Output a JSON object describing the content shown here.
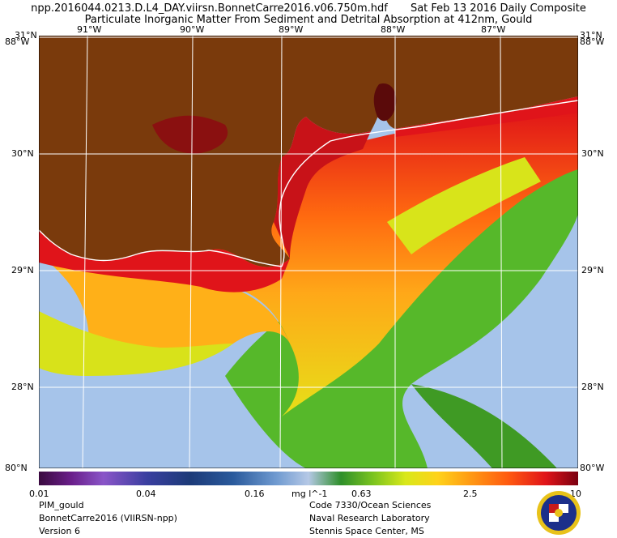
{
  "header": {
    "filename": "npp.2016044.0213.D.L4_DAY.viirsn.BonnetCarre2016.v06.750m.hdf",
    "date": "Sat Feb 13 2016 Daily Composite",
    "product": "Particulate Inorganic Matter From Sediment and Detrital Absorption at 412nm, Gould"
  },
  "axes": {
    "lon_labels": [
      "91°W",
      "90°W",
      "89°W",
      "88°W",
      "87°W"
    ],
    "lat_labels": [
      "30°N",
      "29°N",
      "28°N"
    ],
    "corner_top_lat": "31°N",
    "corner_bottom_lat": "80°N",
    "corner_left_lon": "88°W",
    "corner_right_lon": "88°W",
    "bottom_right_lat": "80°W"
  },
  "colorbar": {
    "ticks": [
      "0.01",
      "0.04",
      "0.16",
      "0.63",
      "2.5",
      "10"
    ],
    "units": "mg l^-1"
  },
  "footer": {
    "left": [
      "PIM_gould",
      "BonnetCarre2016 (VIIRSN-npp)",
      "Version 6"
    ],
    "right": [
      "Code 7330/Ocean Sciences",
      "Naval Research Laboratory",
      "Stennis Space Center, MS"
    ]
  },
  "colors": {
    "land": "#7a3a0c",
    "ocean_clear": "#a6c4ea",
    "sediment_high": "#d4101a"
  }
}
